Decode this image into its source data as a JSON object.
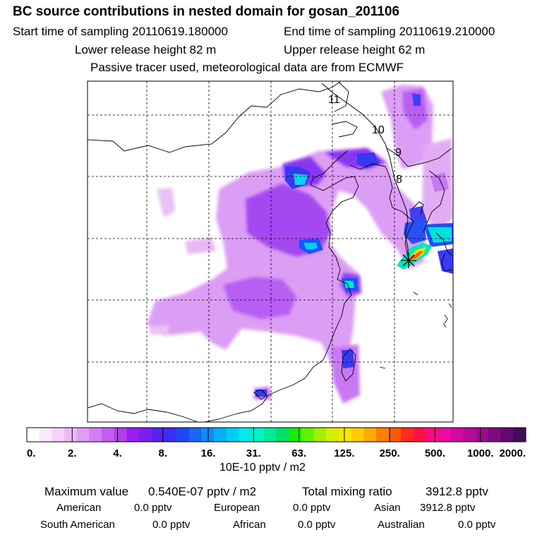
{
  "title": "BC  source contributions in nested domain for gosan_201106",
  "sampling": {
    "start": "Start time of sampling 20110619.180000",
    "end": "End time of sampling 20110619.210000"
  },
  "release": {
    "lower": "Lower release height   82 m",
    "upper": "Upper release height   62 m"
  },
  "note": "Passive tracer used, meteorological data are from ECMWF",
  "map": {
    "trajectory_labels": [
      "11",
      "10",
      "9",
      "8"
    ],
    "receptor_icon": "star-marker-icon"
  },
  "colorbar": {
    "tick_labels": [
      "0.",
      "2.",
      "4.",
      "8.",
      "16.",
      "31.",
      "63.",
      "125.",
      "250.",
      "500.",
      "1000.",
      "2000."
    ],
    "colors": [
      "#ffffff",
      "#fbeafb",
      "#f4d2f7",
      "#ebb9f5",
      "#e19df3",
      "#d47ef1",
      "#c45cf2",
      "#b13cf2",
      "#9a1ef2",
      "#7a1ff0",
      "#5a22f0",
      "#3b2ef4",
      "#2046f7",
      "#1668f8",
      "#0f8cf8",
      "#05b0f6",
      "#00cdf2",
      "#00eaea",
      "#00f2c8",
      "#00ea9a",
      "#00de66",
      "#16ec00",
      "#62f000",
      "#a0f000",
      "#d2f000",
      "#f5e800",
      "#ffcc00",
      "#ffa800",
      "#ff8000",
      "#ff5a00",
      "#ff2a1e",
      "#ff0f46",
      "#ff0a82",
      "#ee0aa0",
      "#d20a9e",
      "#b70a96",
      "#9b0a8c",
      "#7d0a80",
      "#600a70",
      "#450a5a"
    ],
    "unit_label": "10E-10 pptv / m2"
  },
  "stats": {
    "max_label": "Maximum value",
    "max_value": "0.540E-07 pptv / m2",
    "total_label": "Total mixing ratio",
    "total_value": "3912.8 pptv",
    "regions": [
      {
        "name": "American",
        "value": "0.0 pptv"
      },
      {
        "name": "European",
        "value": "0.0 pptv"
      },
      {
        "name": "Asian",
        "value": "3912.8 pptv"
      },
      {
        "name": "South American",
        "value": "0.0 pptv"
      },
      {
        "name": "African",
        "value": "0.0 pptv"
      },
      {
        "name": "Australian",
        "value": "0.0 pptv"
      }
    ]
  }
}
